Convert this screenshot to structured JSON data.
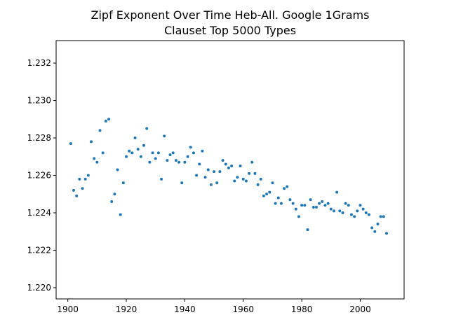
{
  "chart_data": {
    "type": "scatter",
    "title": "Zipf Exponent Over Time Heb-All. Google 1Grams",
    "subtitle": "Clauset Top 5000 Types",
    "xlabel": "",
    "ylabel": "",
    "xlim": [
      1896,
      2015
    ],
    "ylim": [
      1.2194,
      1.2332
    ],
    "x_ticks": [
      1900,
      1920,
      1940,
      1960,
      1980,
      2000
    ],
    "y_ticks": [
      1.22,
      1.222,
      1.224,
      1.226,
      1.228,
      1.23,
      1.232
    ],
    "y_tick_labels": [
      "1.220",
      "1.222",
      "1.224",
      "1.226",
      "1.228",
      "1.230",
      "1.232"
    ],
    "grid": false,
    "marker_color": "#1f77b4",
    "series": [
      {
        "x": [
          1901,
          1902,
          1903,
          1904,
          1905,
          1906,
          1907,
          1908,
          1909,
          1910,
          1911,
          1912,
          1913,
          1914,
          1915,
          1916,
          1917,
          1918,
          1919,
          1920,
          1921,
          1922,
          1923,
          1924,
          1925,
          1926,
          1927,
          1928,
          1929,
          1930,
          1931,
          1932,
          1933,
          1934,
          1935,
          1936,
          1937,
          1938,
          1939,
          1940,
          1941,
          1942,
          1943,
          1944,
          1945,
          1946,
          1947,
          1948,
          1949,
          1950,
          1951,
          1952,
          1953,
          1954,
          1955,
          1956,
          1957,
          1958,
          1959,
          1960,
          1961,
          1962,
          1963,
          1964,
          1965,
          1966,
          1967,
          1968,
          1969,
          1970,
          1971,
          1972,
          1973,
          1974,
          1975,
          1976,
          1977,
          1978,
          1979,
          1980,
          1981,
          1982,
          1983,
          1984,
          1985,
          1986,
          1987,
          1988,
          1989,
          1990,
          1991,
          1992,
          1993,
          1994,
          1995,
          1996,
          1997,
          1998,
          1999,
          2000,
          2001,
          2002,
          2003,
          2004,
          2005,
          2006,
          2007,
          2008,
          2009
        ],
        "y": [
          1.2277,
          1.2252,
          1.2249,
          1.2258,
          1.2253,
          1.2258,
          1.226,
          1.2278,
          1.2269,
          1.2267,
          1.2284,
          1.2272,
          1.2289,
          1.229,
          1.2246,
          1.225,
          1.2263,
          1.2239,
          1.2256,
          1.227,
          1.2273,
          1.2272,
          1.228,
          1.2274,
          1.227,
          1.2276,
          1.2285,
          1.2267,
          1.2272,
          1.2269,
          1.2272,
          1.2258,
          1.2281,
          1.2268,
          1.2271,
          1.2272,
          1.2268,
          1.2267,
          1.2256,
          1.2267,
          1.227,
          1.2275,
          1.2272,
          1.226,
          1.2266,
          1.2273,
          1.2259,
          1.2263,
          1.2255,
          1.2262,
          1.2256,
          1.2262,
          1.2268,
          1.2266,
          1.2264,
          1.2265,
          1.2257,
          1.2259,
          1.2265,
          1.2258,
          1.2257,
          1.2261,
          1.2267,
          1.2261,
          1.2255,
          1.2258,
          1.2249,
          1.225,
          1.2251,
          1.2256,
          1.2245,
          1.2248,
          1.2245,
          1.2253,
          1.2254,
          1.2247,
          1.2245,
          1.2242,
          1.2238,
          1.2244,
          1.2244,
          1.2231,
          1.2247,
          1.2243,
          1.2243,
          1.2245,
          1.2246,
          1.2244,
          1.2245,
          1.2242,
          1.2241,
          1.2251,
          1.2241,
          1.224,
          1.2245,
          1.2244,
          1.2239,
          1.2238,
          1.2241,
          1.2244,
          1.2242,
          1.224,
          1.2239,
          1.2232,
          1.223,
          1.2234,
          1.2238,
          1.2238,
          1.2229
        ]
      }
    ]
  }
}
